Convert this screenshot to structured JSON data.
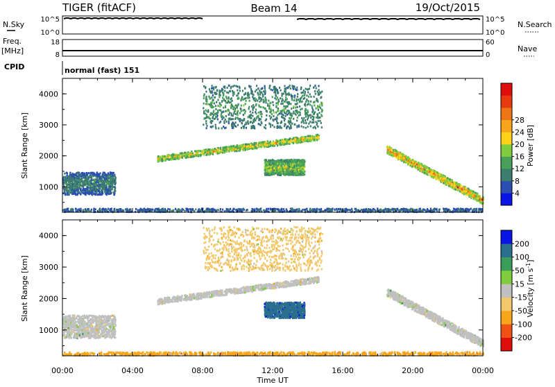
{
  "header": {
    "radar": "TIGER (fitACF)",
    "beam": "Beam 14",
    "date": "19/Oct/2015"
  },
  "status_panels": {
    "nsky_label": "N.Sky",
    "nsky_ticks": [
      "10^5",
      "10^0"
    ],
    "nsearch_label": "N.Search",
    "nsearch_ticks": [
      "10^5",
      "10^0"
    ],
    "freq_label": "Freq.",
    "freq_unit": "[MHz]",
    "freq_ticks": [
      "18",
      "8"
    ],
    "nave_label": "Nave",
    "nave_ticks": [
      "60",
      "0"
    ],
    "cpid_label": "CPID",
    "cpid_text": "normal (fast) 151"
  },
  "chart_data": [
    {
      "type": "heatmap",
      "name": "power",
      "ylabel": "Slant Range [km]",
      "ylim": [
        180,
        4500
      ],
      "yticks": [
        1000,
        2000,
        3000,
        4000
      ],
      "xlim_hours": [
        0,
        24
      ],
      "colorbar": {
        "label": "Power [dB]",
        "ticks": [
          "4",
          "8",
          "12",
          "16",
          "20",
          "24",
          "28"
        ],
        "colors": [
          "#0a14e6",
          "#2b4fb0",
          "#3c7d6d",
          "#48a05a",
          "#7fcc3f",
          "#ffd21a",
          "#f7a51a",
          "#ef7414",
          "#e83a10",
          "#e00d0d"
        ]
      },
      "features": [
        {
          "t0": 5.4,
          "t1": 14.6,
          "r0": 1800,
          "r1": 2750,
          "peak_db": 22
        },
        {
          "t0": 18.5,
          "t1": 24.0,
          "r0": 550,
          "r1": 2200,
          "peak_db": 26
        },
        {
          "t0": 11.5,
          "t1": 13.8,
          "r0": 1350,
          "r1": 1900,
          "peak_db": 18
        },
        {
          "t0": 8.0,
          "t1": 14.8,
          "r0": 2800,
          "r1": 4350,
          "peak_db": 12
        },
        {
          "t0": 0.0,
          "t1": 3.0,
          "r0": 700,
          "r1": 1500,
          "peak_db": 9
        },
        {
          "t0": 0.0,
          "t1": 24.0,
          "r0": 180,
          "r1": 300,
          "peak_db": 8
        }
      ]
    },
    {
      "type": "heatmap",
      "name": "velocity",
      "ylabel": "Slant Range [km]",
      "xlabel": "Time UT",
      "ylim": [
        180,
        4500
      ],
      "yticks": [
        1000,
        2000,
        3000,
        4000
      ],
      "xlim_hours": [
        0,
        24
      ],
      "xticks": [
        "00:00",
        "04:00",
        "08:00",
        "12:00",
        "16:00",
        "20:00",
        "00:00"
      ],
      "colorbar": {
        "label": "Velocity [m s",
        "label_sup": "-1",
        "label_end": "]",
        "ticks": [
          "-200",
          "-100",
          "-50",
          "-15",
          "15",
          "50",
          "100",
          "200"
        ],
        "colors": [
          "#e00d0d",
          "#ef5214",
          "#f7a51a",
          "#f2c86a",
          "#c0c0c0",
          "#7fcc3f",
          "#3c9c5a",
          "#2a6f8e",
          "#0a14e6"
        ]
      },
      "features": [
        {
          "t0": 5.4,
          "t1": 14.6,
          "r0": 1800,
          "r1": 2750,
          "velocity": 0
        },
        {
          "t0": 18.5,
          "t1": 24.0,
          "r0": 550,
          "r1": 2200,
          "velocity": 0
        },
        {
          "t0": 11.5,
          "t1": 13.8,
          "r0": 1350,
          "r1": 1900,
          "velocity": 200
        },
        {
          "t0": 8.0,
          "t1": 14.8,
          "r0": 2800,
          "r1": 4350,
          "velocity": -30
        },
        {
          "t0": 0.0,
          "t1": 3.0,
          "r0": 700,
          "r1": 1500,
          "velocity": 0
        },
        {
          "t0": 0.0,
          "t1": 24.0,
          "r0": 180,
          "r1": 300,
          "velocity": -60
        }
      ]
    }
  ]
}
